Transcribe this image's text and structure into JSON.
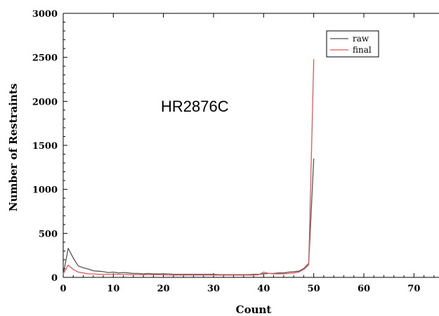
{
  "chart_data": {
    "type": "line",
    "title": "",
    "annotation": "HR2876C",
    "xlabel": "Count",
    "ylabel": "Number of Restraints",
    "xlim": [
      0,
      75
    ],
    "ylim": [
      0,
      3000
    ],
    "xticks": [
      0,
      10,
      20,
      30,
      40,
      50,
      60,
      70
    ],
    "yticks": [
      0,
      500,
      1000,
      1500,
      2000,
      2500,
      3000
    ],
    "grid": false,
    "legend_position": "top-right",
    "series": [
      {
        "name": "raw",
        "color": "#555555",
        "x": [
          0,
          1,
          2,
          3,
          4,
          5,
          6,
          7,
          8,
          9,
          10,
          11,
          12,
          13,
          14,
          15,
          16,
          17,
          18,
          19,
          20,
          21,
          22,
          23,
          24,
          25,
          26,
          27,
          28,
          29,
          30,
          31,
          32,
          33,
          34,
          35,
          36,
          37,
          38,
          39,
          40,
          41,
          42,
          43,
          44,
          45,
          46,
          47,
          48,
          49,
          50
        ],
        "y": [
          30,
          330,
          220,
          130,
          110,
          95,
          75,
          70,
          65,
          55,
          60,
          50,
          55,
          50,
          45,
          45,
          40,
          45,
          40,
          40,
          40,
          40,
          35,
          35,
          35,
          35,
          35,
          35,
          35,
          35,
          35,
          30,
          30,
          30,
          30,
          30,
          30,
          30,
          35,
          35,
          40,
          45,
          45,
          50,
          50,
          60,
          65,
          70,
          100,
          160,
          1350
        ]
      },
      {
        "name": "final",
        "color": "#e8585a",
        "x": [
          0,
          1,
          2,
          3,
          4,
          5,
          6,
          7,
          8,
          9,
          10,
          11,
          12,
          13,
          14,
          15,
          16,
          17,
          18,
          19,
          20,
          21,
          22,
          23,
          24,
          25,
          26,
          27,
          28,
          29,
          30,
          31,
          32,
          33,
          34,
          35,
          36,
          37,
          38,
          39,
          40,
          41,
          42,
          43,
          44,
          45,
          46,
          47,
          48,
          49,
          50
        ],
        "y": [
          40,
          140,
          90,
          60,
          50,
          40,
          40,
          35,
          35,
          35,
          35,
          35,
          35,
          30,
          30,
          30,
          30,
          30,
          30,
          30,
          30,
          25,
          25,
          25,
          25,
          25,
          25,
          25,
          25,
          25,
          25,
          25,
          25,
          25,
          25,
          25,
          25,
          25,
          25,
          30,
          60,
          45,
          40,
          40,
          40,
          45,
          50,
          60,
          90,
          140,
          2480
        ]
      }
    ]
  }
}
